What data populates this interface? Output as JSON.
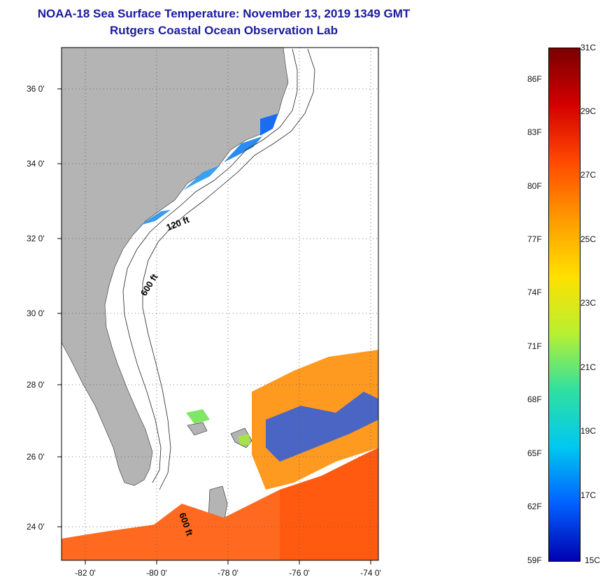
{
  "header": {
    "title": "NOAA-18 Sea Surface Temperature:  November 13, 2019 1349 GMT",
    "subtitle": "Rutgers Coastal Ocean Observation Lab"
  },
  "map": {
    "lat_ticks": [
      "36 0'",
      "34 0'",
      "32 0'",
      "30 0'",
      "28 0'",
      "26 0'",
      "24 0'"
    ],
    "lon_ticks": [
      "-82 0'",
      "-80 0'",
      "-78 0'",
      "-76 0'",
      "-74 0'"
    ],
    "contour_labels": [
      "120 ft",
      "600 ft",
      "600 ft"
    ],
    "colors": {
      "land": "#b4b4b4",
      "ocean_nodata": "#ffffff",
      "frame": "#000000"
    }
  },
  "colorbar": {
    "celsius": [
      "31C",
      "29C",
      "27C",
      "25C",
      "23C",
      "21C",
      "19C",
      "17C",
      "15C"
    ],
    "fahrenheit": [
      "86F",
      "83F",
      "80F",
      "77F",
      "74F",
      "71F",
      "68F",
      "65F",
      "62F",
      "59F"
    ],
    "colors": [
      "#7a0000",
      "#d40000",
      "#ff4a00",
      "#ff9a00",
      "#ffe000",
      "#b8f030",
      "#30e0a0",
      "#00c8f0",
      "#0060ff",
      "#0000b0"
    ]
  }
}
